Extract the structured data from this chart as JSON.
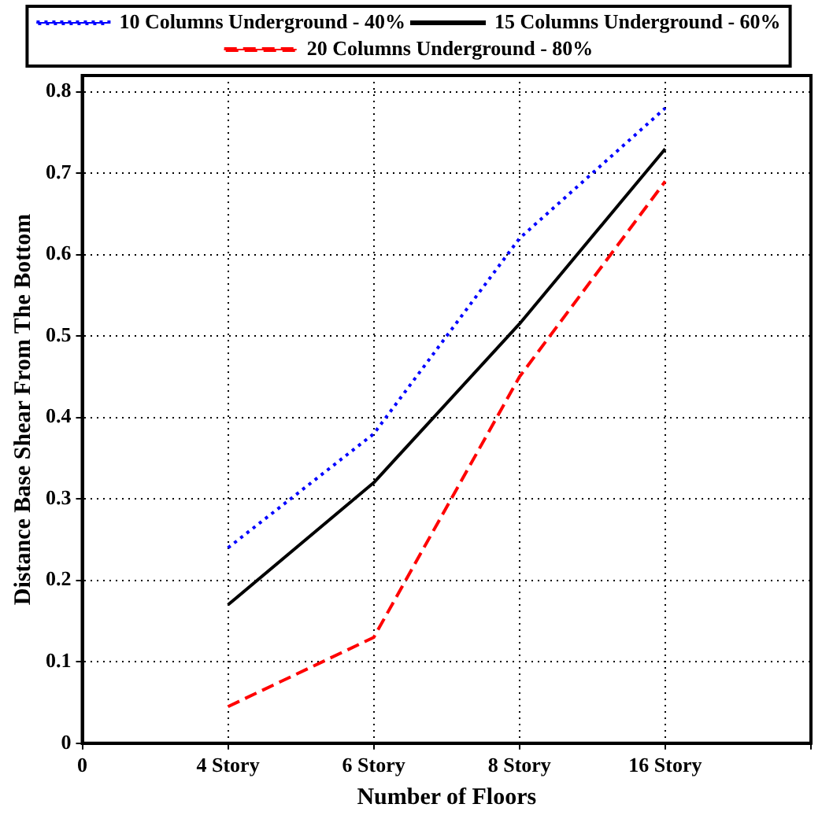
{
  "chart_data": {
    "type": "line",
    "xlabel": "Number of Floors",
    "ylabel": "Distance Base Shear From The Bottom",
    "categories": [
      "0",
      "4 Story",
      "6 Story",
      "8 Story",
      "16 Story",
      null
    ],
    "series": [
      {
        "name": "10 Columns Underground - 40%",
        "color": "#0000ff",
        "line_style": "dotted",
        "values": [
          null,
          0.24,
          0.38,
          0.62,
          0.78,
          null
        ]
      },
      {
        "name": "15 Columns Underground - 60%",
        "color": "#000000",
        "line_style": "solid",
        "values": [
          null,
          0.17,
          0.32,
          0.515,
          0.73,
          null
        ]
      },
      {
        "name": "20 Columns Underground - 80%",
        "color": "#ff0000",
        "line_style": "dashed",
        "values": [
          null,
          0.045,
          0.13,
          0.45,
          0.69,
          null
        ]
      }
    ],
    "ylim": [
      0,
      0.82
    ],
    "yticks": [
      0,
      0.1,
      0.2,
      0.3,
      0.4,
      0.5,
      0.6,
      0.7,
      0.8
    ],
    "grid": true,
    "legend": "top",
    "marker": "none"
  }
}
